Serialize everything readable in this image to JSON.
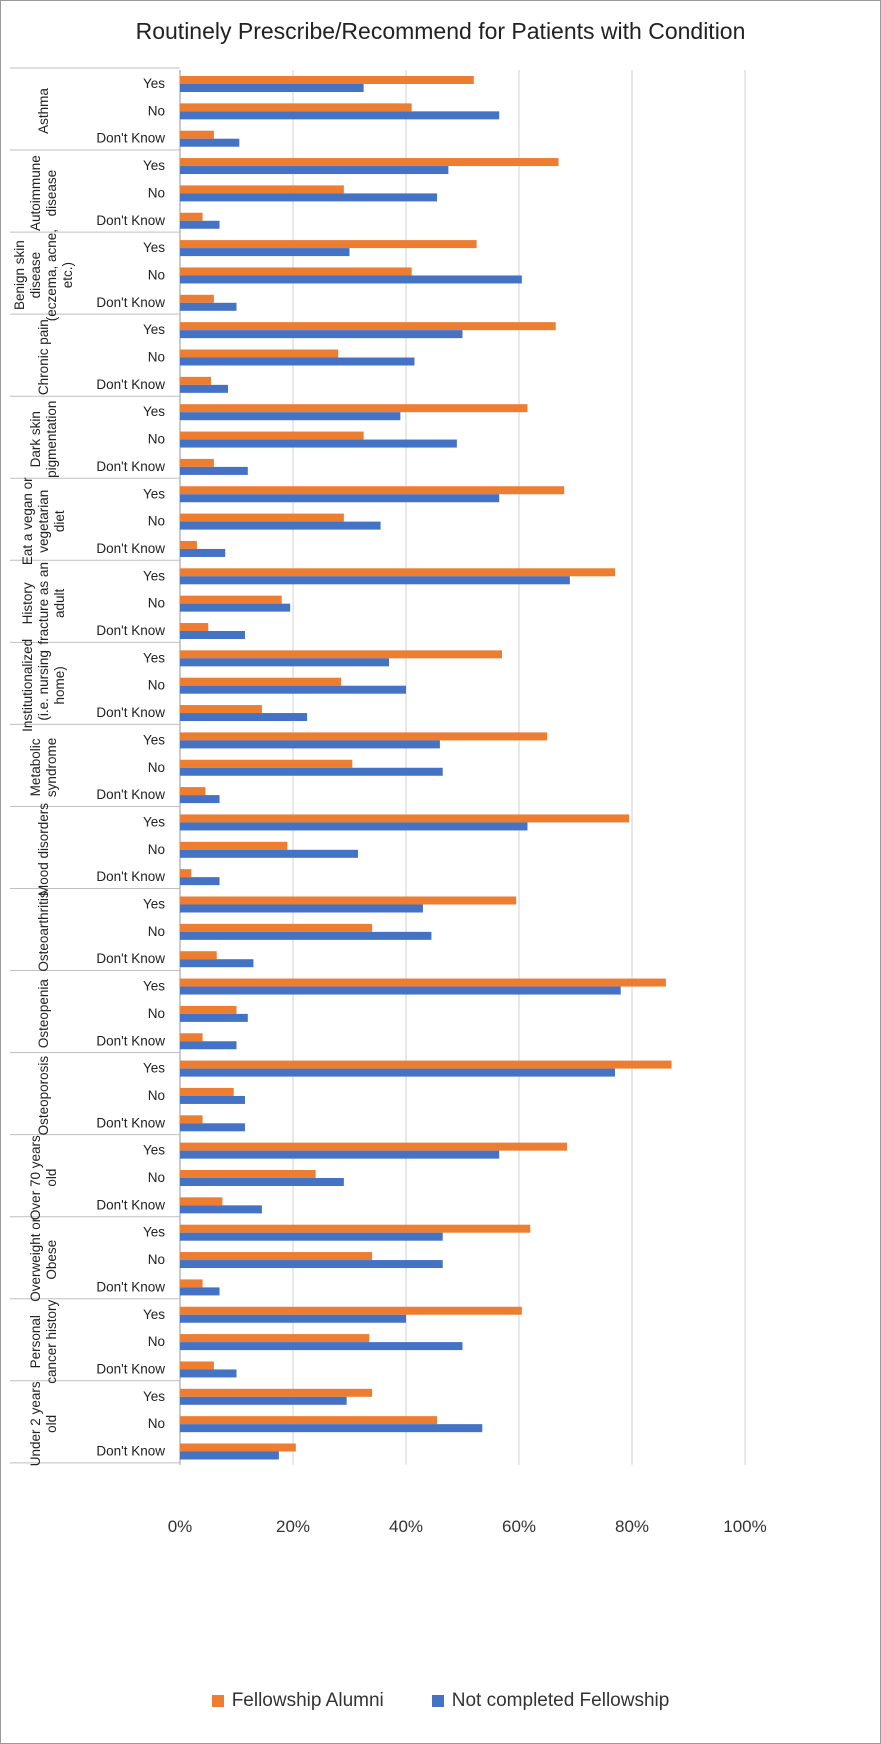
{
  "chart_data": {
    "type": "bar",
    "orientation": "horizontal",
    "title": "Routinely Prescribe/Recommend for Patients with Condition",
    "xlim": [
      0,
      100
    ],
    "x_ticks": [
      "0%",
      "20%",
      "40%",
      "60%",
      "80%",
      "100%"
    ],
    "grid": "vertical",
    "legend_position": "bottom",
    "answer_labels": [
      "Yes",
      "No",
      "Don't Know"
    ],
    "groups": [
      {
        "label": "Asthma"
      },
      {
        "label": "Autoimmune disease"
      },
      {
        "label": "Benign skin disease (eczema, acne, etc.)"
      },
      {
        "label": "Chronic pain"
      },
      {
        "label": "Dark skin pigmentation"
      },
      {
        "label": "Eat a vegan or vegetarian diet"
      },
      {
        "label": "History fracture as an adult"
      },
      {
        "label": "Institutionalized (i.e. nursing home)"
      },
      {
        "label": "Metabolic syndrome"
      },
      {
        "label": "Mood disorders"
      },
      {
        "label": "Osteoarthritis"
      },
      {
        "label": "Osteopenia"
      },
      {
        "label": "Osteoporosis"
      },
      {
        "label": "Over 70 years old"
      },
      {
        "label": "Overweight or Obese"
      },
      {
        "label": "Personal cancer history"
      },
      {
        "label": "Under 2 years old"
      }
    ],
    "series": [
      {
        "name": "Fellowship Alumni",
        "color": "#ED7D31",
        "values": [
          [
            52,
            41,
            6
          ],
          [
            67,
            29,
            4
          ],
          [
            52.5,
            41,
            6
          ],
          [
            66.5,
            28,
            5.5
          ],
          [
            61.5,
            32.5,
            6
          ],
          [
            68,
            29,
            3
          ],
          [
            77,
            18,
            5
          ],
          [
            57,
            28.5,
            14.5
          ],
          [
            65,
            30.5,
            4.5
          ],
          [
            79.5,
            19,
            2
          ],
          [
            59.5,
            34,
            6.5
          ],
          [
            86,
            10,
            4
          ],
          [
            87,
            9.5,
            4
          ],
          [
            68.5,
            24,
            7.5
          ],
          [
            62,
            34,
            4
          ],
          [
            60.5,
            33.5,
            6
          ],
          [
            34,
            45.5,
            20.5
          ]
        ]
      },
      {
        "name": "Not completed Fellowship",
        "color": "#4472C4",
        "values": [
          [
            32.5,
            56.5,
            10.5
          ],
          [
            47.5,
            45.5,
            7
          ],
          [
            30,
            60.5,
            10
          ],
          [
            50,
            41.5,
            8.5
          ],
          [
            39,
            49,
            12
          ],
          [
            56.5,
            35.5,
            8
          ],
          [
            69,
            19.5,
            11.5
          ],
          [
            37,
            40,
            22.5
          ],
          [
            46,
            46.5,
            7
          ],
          [
            61.5,
            31.5,
            7
          ],
          [
            43,
            44.5,
            13
          ],
          [
            78,
            12,
            10
          ],
          [
            77,
            11.5,
            11.5
          ],
          [
            56.5,
            29,
            14.5
          ],
          [
            46.5,
            46.5,
            7
          ],
          [
            40,
            50,
            10
          ],
          [
            29.5,
            53.5,
            17.5
          ]
        ]
      }
    ]
  },
  "legend": {
    "items": [
      {
        "label": "Fellowship Alumni",
        "color": "#ED7D31"
      },
      {
        "label": "Not completed Fellowship",
        "color": "#4472C4"
      }
    ]
  }
}
